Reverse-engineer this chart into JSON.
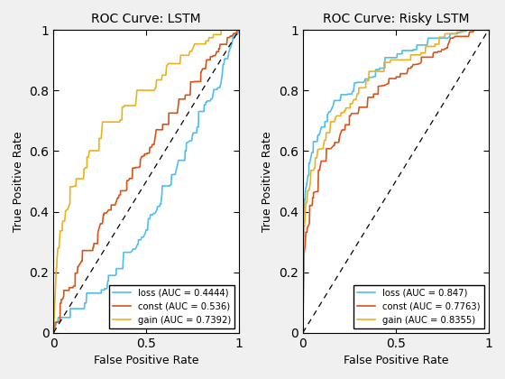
{
  "ax1_title": "ROC Curve: LSTM",
  "ax2_title": "ROC Curve: Risky LSTM",
  "xlabel": "False Positive Rate",
  "ylabel": "True Positive Rate",
  "colors": {
    "loss": "#4DBEEE",
    "const": "#D95319",
    "gain": "#EDB120"
  },
  "ax1_auc": {
    "loss": 0.4444,
    "const": 0.536,
    "gain": 0.7392
  },
  "ax2_auc": {
    "loss": 0.847,
    "const": 0.7763,
    "gain": 0.8355
  },
  "fig_bg": "#f0f0f0",
  "ax_bg": "#ffffff",
  "line_width": 1.2,
  "figsize": [
    5.6,
    4.2
  ],
  "dpi": 100
}
